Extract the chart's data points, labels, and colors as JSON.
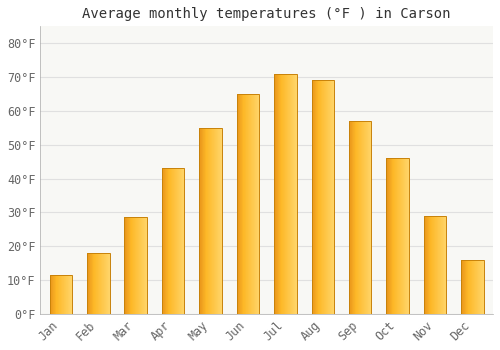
{
  "months": [
    "Jan",
    "Feb",
    "Mar",
    "Apr",
    "May",
    "Jun",
    "Jul",
    "Aug",
    "Sep",
    "Oct",
    "Nov",
    "Dec"
  ],
  "values": [
    11.5,
    18.0,
    28.5,
    43.0,
    55.0,
    65.0,
    71.0,
    69.0,
    57.0,
    46.0,
    29.0,
    16.0
  ],
  "title": "Average monthly temperatures (°F ) in Carson",
  "ylabel_ticks": [
    "0°F",
    "10°F",
    "20°F",
    "30°F",
    "40°F",
    "50°F",
    "60°F",
    "70°F",
    "80°F"
  ],
  "ytick_vals": [
    0,
    10,
    20,
    30,
    40,
    50,
    60,
    70,
    80
  ],
  "ylim": [
    0,
    85
  ],
  "bar_color_left": "#E8941A",
  "bar_color_center": "#FDB827",
  "bar_color_right": "#FDD16A",
  "bar_edge_color": "#C8820A",
  "background_color": "#ffffff",
  "plot_bg_color": "#f8f8f5",
  "grid_color": "#e0e0e0",
  "title_fontsize": 10,
  "tick_fontsize": 8.5,
  "bar_width": 0.6
}
